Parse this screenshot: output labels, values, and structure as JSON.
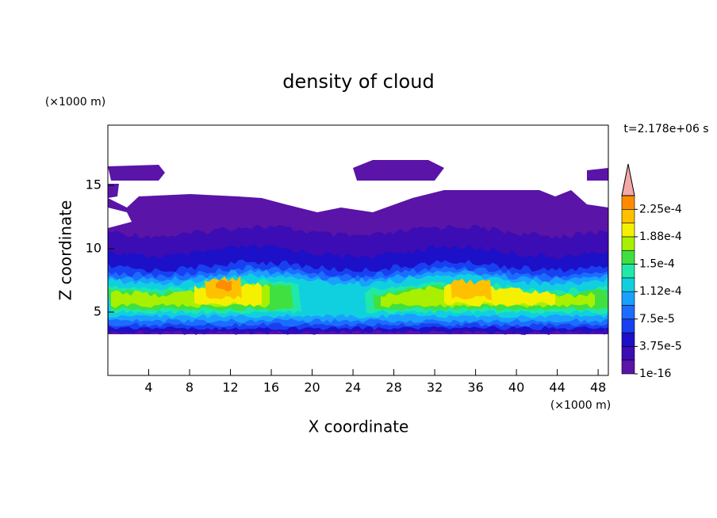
{
  "chart_data": {
    "type": "contour",
    "title": "density of cloud",
    "x_label": "X coordinate",
    "y_label": "Z coordinate",
    "x_unit": "(×1000 m)",
    "y_unit": "(×1000 m)",
    "time_label": "t=2.178e+06 s",
    "xlim": [
      0,
      49
    ],
    "xticks": [
      4,
      8,
      12,
      16,
      20,
      24,
      28,
      32,
      36,
      40,
      44,
      48
    ],
    "ylim": [
      0,
      19.75
    ],
    "yticks": [
      5,
      10,
      15
    ],
    "colorbar": {
      "clim": [
        1e-16,
        0.00024375
      ],
      "ticks": [
        1e-16,
        {
          "value": 3.75e-05,
          "label": "3.75e-5"
        },
        {
          "value": 7.5e-05,
          "label": "7.5e-5"
        },
        {
          "value": 0.0001125,
          "label": "1.12e-4"
        },
        {
          "value": 0.00015,
          "label": "1.5e-4"
        },
        {
          "value": 0.0001875,
          "label": "1.88e-4"
        },
        {
          "value": 0.000225,
          "label": "2.25e-4"
        }
      ],
      "colors": [
        "#5a14a8",
        "#3c0cb4",
        "#1c10c8",
        "#1840f0",
        "#1c6cff",
        "#1aa0ff",
        "#10d0e0",
        "#20e8a8",
        "#40e040",
        "#a8f000",
        "#f4f000",
        "#ffc000",
        "#ff8c00",
        "#ff4c10",
        "#e81010"
      ],
      "extend_color": "#f4a8a8"
    }
  }
}
